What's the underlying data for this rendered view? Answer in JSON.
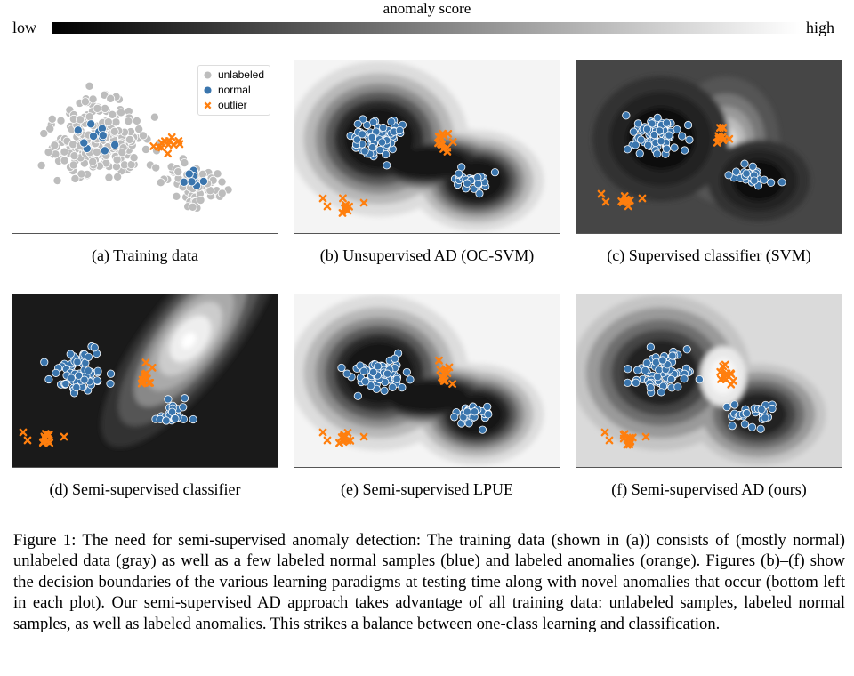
{
  "colorbar": {
    "title": "anomaly score",
    "low": "low",
    "high": "high"
  },
  "legend": {
    "unlabeled": "unlabeled",
    "normal": "normal",
    "outlier": "outlier"
  },
  "colors": {
    "unlabeled": "#bdbdbd",
    "normal": "#3a75ad",
    "outlier": "#ff7f0e"
  },
  "panels": [
    {
      "id": "a",
      "label": "(a)  Training data",
      "background": "none"
    },
    {
      "id": "b",
      "label": "(b)  Unsupervised AD (OC-SVM)"
    },
    {
      "id": "c",
      "label": "(c)  Supervised classifier (SVM)"
    },
    {
      "id": "d",
      "label": "(d)  Semi-supervised classifier"
    },
    {
      "id": "e",
      "label": "(e)  Semi-supervised LPUE"
    },
    {
      "id": "f",
      "label": "(f)  Semi-supervised AD (ours)"
    }
  ],
  "caption": "Figure 1: The need for semi-supervised anomaly detection: The training data (shown in (a)) consists of (mostly normal) unlabeled data (gray) as well as a few labeled normal samples (blue) and labeled anomalies (orange). Figures (b)–(f) show the decision boundaries of the various learning paradigms at testing time along with novel anomalies that occur (bottom left in each plot). Our semi-supervised AD approach takes advantage of all training data: unlabeled samples, labeled normal samples, as well as labeled anomalies. This strikes a balance between one-class learning and classification."
}
